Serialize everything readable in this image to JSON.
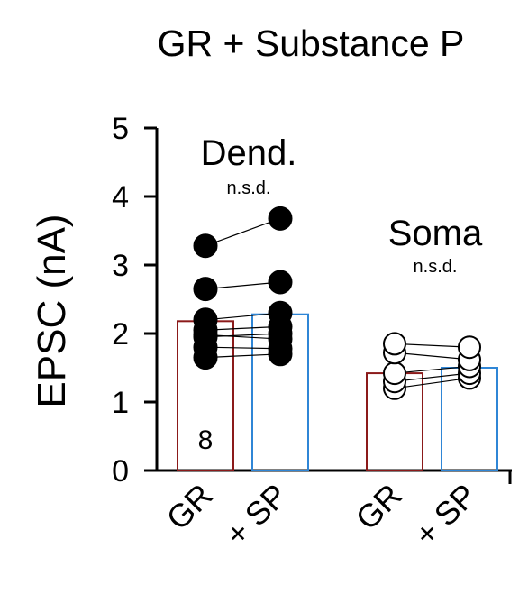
{
  "chart_data": {
    "type": "bar",
    "title": "GR + Substance P",
    "ylabel": "EPSC (nA)",
    "ylim": [
      0,
      5
    ],
    "yticks": [
      "0",
      "1",
      "2",
      "3",
      "4",
      "5"
    ],
    "categories": [
      "GR",
      "+ SP",
      "GR",
      "+ SP"
    ],
    "groups": [
      {
        "label": "Dend.",
        "annotation": "n.s.d.",
        "n_label": "8",
        "marker": "filled",
        "bars": [
          {
            "category": "GR",
            "value": 2.18,
            "color": "#8b1a1a"
          },
          {
            "category": "+ SP",
            "value": 2.28,
            "color": "#2f86d6"
          }
        ],
        "pairs": [
          [
            1.65,
            1.7
          ],
          [
            1.8,
            1.78
          ],
          [
            1.95,
            2.0
          ],
          [
            2.05,
            2.1
          ],
          [
            2.2,
            2.3
          ],
          [
            2.65,
            2.75
          ],
          [
            3.28,
            3.68
          ],
          [
            1.98,
            1.92
          ]
        ]
      },
      {
        "label": "Soma",
        "annotation": "n.s.d.",
        "marker": "open",
        "bars": [
          {
            "category": "GR",
            "value": 1.42,
            "color": "#8b1a1a"
          },
          {
            "category": "+ SP",
            "value": 1.5,
            "color": "#2f86d6"
          }
        ],
        "pairs": [
          [
            1.2,
            1.35
          ],
          [
            1.3,
            1.42
          ],
          [
            1.42,
            1.52
          ],
          [
            1.72,
            1.62
          ],
          [
            1.85,
            1.8
          ]
        ]
      }
    ],
    "grid": false,
    "legend": "none"
  }
}
